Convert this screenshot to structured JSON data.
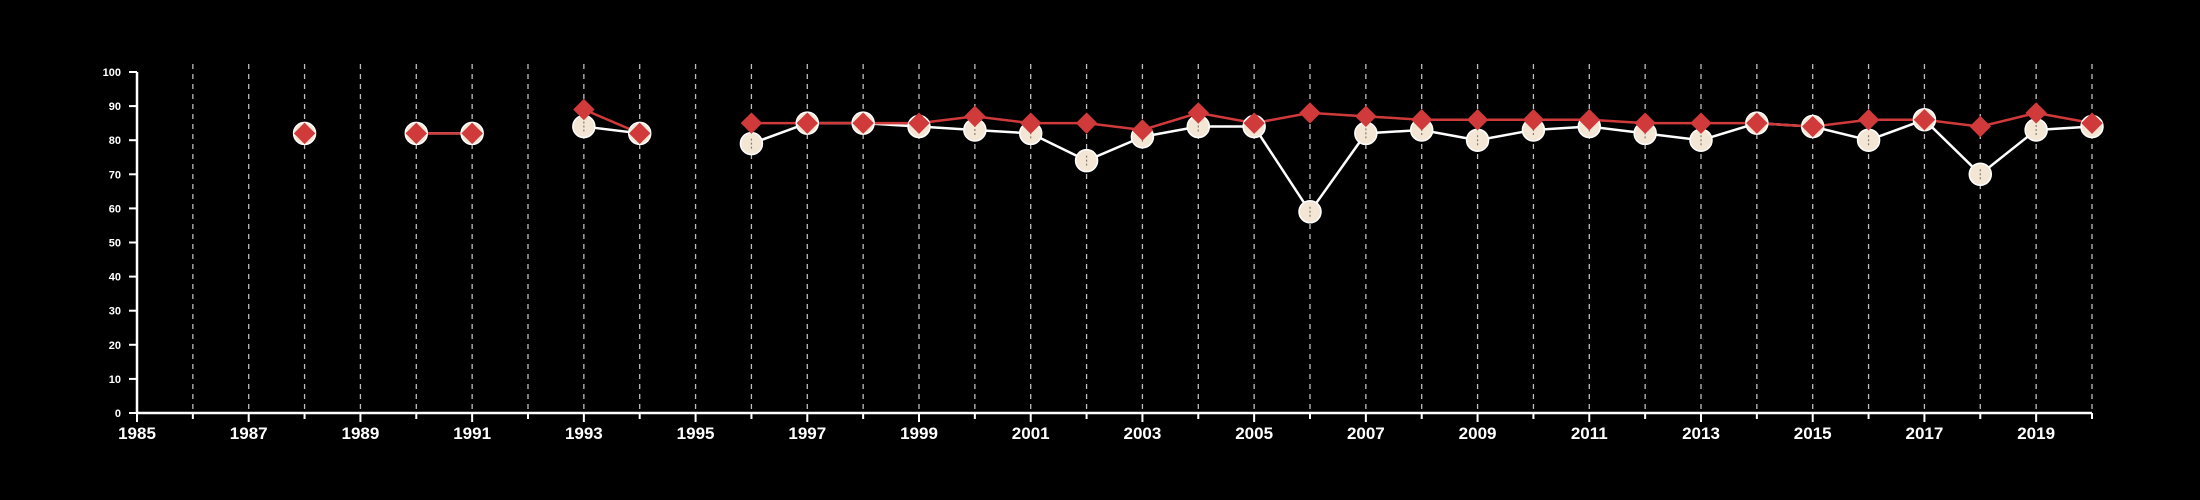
{
  "chart_data": {
    "type": "line",
    "title": "",
    "xlabel": "",
    "ylabel": "",
    "xlim": [
      1985,
      2020
    ],
    "ylim": [
      0,
      100
    ],
    "x_ticks": [
      1985,
      1987,
      1989,
      1991,
      1993,
      1995,
      1997,
      1999,
      2001,
      2003,
      2005,
      2007,
      2009,
      2011,
      2013,
      2015,
      2017,
      2019
    ],
    "x_tick_labels": [
      "1985",
      "1987",
      "1989",
      "1991",
      "1993",
      "1995",
      "1997",
      "1999",
      "2001",
      "2003",
      "2005",
      "2007",
      "2009",
      "2011",
      "2013",
      "2015",
      "2017",
      "2019"
    ],
    "y_ticks": [
      0,
      10,
      20,
      30,
      40,
      50,
      60,
      70,
      80,
      90,
      100
    ],
    "y_tick_labels": [
      "0",
      "10",
      "20",
      "30",
      "40",
      "50",
      "60",
      "70",
      "80",
      "90",
      "100"
    ],
    "vertical_gridlines": "dashed, every year",
    "background": "#000000",
    "axis_color": "#ffffff",
    "series": [
      {
        "marker": "circle",
        "line_color": "#ffffff",
        "marker_fill": "#f3e6d4",
        "points": [
          [
            1988,
            82
          ],
          [
            1990,
            82
          ],
          [
            1991,
            82
          ],
          [
            1993,
            84
          ],
          [
            1994,
            82
          ],
          [
            1996,
            79
          ],
          [
            1997,
            85
          ],
          [
            1998,
            85
          ],
          [
            1999,
            84
          ],
          [
            2000,
            83
          ],
          [
            2001,
            82
          ],
          [
            2002,
            74
          ],
          [
            2003,
            81
          ],
          [
            2004,
            84
          ],
          [
            2005,
            84
          ],
          [
            2006,
            59
          ],
          [
            2007,
            82
          ],
          [
            2008,
            83
          ],
          [
            2009,
            80
          ],
          [
            2010,
            83
          ],
          [
            2011,
            84
          ],
          [
            2012,
            82
          ],
          [
            2013,
            80
          ],
          [
            2014,
            85
          ],
          [
            2015,
            84
          ],
          [
            2016,
            80
          ],
          [
            2017,
            86
          ],
          [
            2018,
            70
          ],
          [
            2019,
            83
          ],
          [
            2020,
            84
          ]
        ]
      },
      {
        "marker": "diamond",
        "line_color": "#d03a3a",
        "marker_fill": "#d03a3a",
        "points": [
          [
            1988,
            82
          ],
          [
            1990,
            82
          ],
          [
            1991,
            82
          ],
          [
            1993,
            89
          ],
          [
            1994,
            82
          ],
          [
            1996,
            85
          ],
          [
            1997,
            85
          ],
          [
            1998,
            85
          ],
          [
            1999,
            85
          ],
          [
            2000,
            87
          ],
          [
            2001,
            85
          ],
          [
            2002,
            85
          ],
          [
            2003,
            83
          ],
          [
            2004,
            88
          ],
          [
            2005,
            85
          ],
          [
            2006,
            88
          ],
          [
            2007,
            87
          ],
          [
            2008,
            86
          ],
          [
            2009,
            86
          ],
          [
            2010,
            86
          ],
          [
            2011,
            86
          ],
          [
            2012,
            85
          ],
          [
            2013,
            85
          ],
          [
            2014,
            85
          ],
          [
            2015,
            84
          ],
          [
            2016,
            86
          ],
          [
            2017,
            86
          ],
          [
            2018,
            84
          ],
          [
            2019,
            88
          ],
          [
            2020,
            85
          ]
        ]
      }
    ]
  }
}
